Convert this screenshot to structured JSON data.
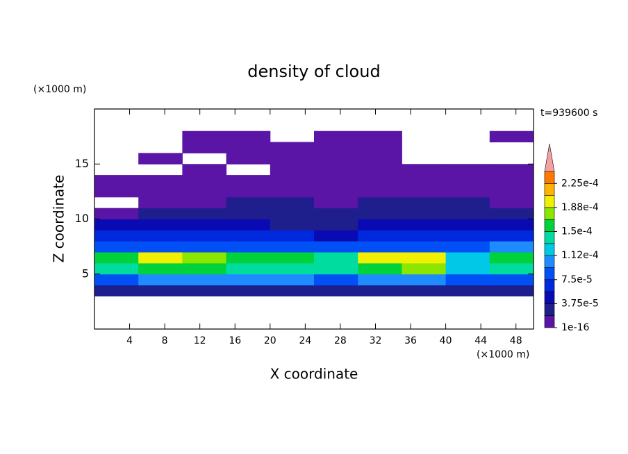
{
  "chart_data": {
    "type": "contourf",
    "title": "density of cloud",
    "x_label": "X coordinate",
    "y_label": "Z coordinate",
    "x_unit": "(×1000 m)",
    "y_unit": "(×1000 m)",
    "annotation": "t=939600 s",
    "xlim": [
      0,
      50
    ],
    "ylim": [
      0,
      20
    ],
    "xticks": [
      4,
      8,
      12,
      16,
      20,
      24,
      28,
      32,
      36,
      40,
      44,
      48
    ],
    "yticks": [
      5,
      10,
      15
    ],
    "x": [
      2.5,
      7.5,
      12.5,
      17.5,
      22.5,
      27.5,
      32.5,
      37.5,
      42.5,
      47.5
    ],
    "z": [
      3.5,
      4.5,
      5.5,
      6.5,
      7.5,
      8.5,
      9.5,
      10.5,
      11.5,
      12.5,
      13.5,
      14.5,
      15.5,
      16.5,
      17.5
    ],
    "values": [
      [
        3e-05,
        3e-05,
        3e-05,
        3e-05,
        3e-05,
        3e-05,
        3e-05,
        3e-05,
        3e-05,
        3e-05
      ],
      [
        9e-05,
        0.0001,
        0.0001,
        0.0001,
        9.5e-05,
        9e-05,
        0.0001,
        0.0001,
        8e-05,
        9e-05
      ],
      [
        0.00014,
        0.00016,
        0.00015,
        0.000145,
        0.00014,
        0.000135,
        0.00016,
        0.00017,
        0.00012,
        0.00014
      ],
      [
        0.00015,
        0.00019,
        0.00017,
        0.00016,
        0.00015,
        0.00014,
        0.00019,
        0.0002,
        0.00013,
        0.00016
      ],
      [
        9e-05,
        8e-05,
        8e-05,
        8e-05,
        8e-05,
        8e-05,
        8.5e-05,
        9e-05,
        8e-05,
        0.0001
      ],
      [
        6e-05,
        6e-05,
        6e-05,
        6e-05,
        6e-05,
        5e-05,
        6e-05,
        6.5e-05,
        6e-05,
        6e-05
      ],
      [
        4e-05,
        4e-05,
        4e-05,
        4e-05,
        3.5e-05,
        3e-05,
        4e-05,
        4.5e-05,
        4.5e-05,
        4e-05
      ],
      [
        1.5e-05,
        2.5e-05,
        2.5e-05,
        2.5e-05,
        2.5e-05,
        2e-05,
        2.5e-05,
        3e-05,
        3e-05,
        2.5e-05
      ],
      [
        null,
        1e-05,
        1e-05,
        2e-05,
        2e-05,
        1e-05,
        2e-05,
        2e-05,
        2e-05,
        1e-05
      ],
      [
        5e-06,
        5e-06,
        5e-06,
        5e-06,
        5e-06,
        5e-06,
        5e-06,
        5e-06,
        5e-06,
        5e-06
      ],
      [
        5e-06,
        5e-06,
        5e-06,
        5e-06,
        5e-06,
        5e-06,
        5e-06,
        5e-06,
        5e-06,
        5e-06
      ],
      [
        null,
        null,
        5e-06,
        null,
        5e-06,
        5e-06,
        5e-06,
        5e-06,
        5e-06,
        5e-06
      ],
      [
        null,
        5e-06,
        null,
        5e-06,
        5e-06,
        5e-06,
        5e-06,
        null,
        null,
        null
      ],
      [
        null,
        null,
        5e-06,
        5e-06,
        5e-06,
        5e-06,
        5e-06,
        null,
        null,
        null
      ],
      [
        null,
        null,
        5e-06,
        5e-06,
        null,
        5e-06,
        5e-06,
        null,
        null,
        5e-06
      ]
    ],
    "levels": [
      1e-16,
      1.875e-05,
      3.75e-05,
      5.625e-05,
      7.5e-05,
      9.375e-05,
      0.0001125,
      0.00013125,
      0.00015,
      0.00016875,
      0.0001875,
      0.00020625,
      0.000225,
      0.00024375
    ],
    "colors": [
      "#5a14a6",
      "#1e1e8c",
      "#0a0ab4",
      "#0028dc",
      "#0050f5",
      "#1e8cff",
      "#00c8e6",
      "#00dca0",
      "#00d23c",
      "#8ce600",
      "#f0f000",
      "#ffb400",
      "#ff7800",
      "#f02000"
    ],
    "extend_color": "#f4a0a0",
    "colorbar_ticks": [
      {
        "value": 1e-16,
        "label": "1e-16"
      },
      {
        "value": 3.75e-05,
        "label": "3.75e-5"
      },
      {
        "value": 7.5e-05,
        "label": "7.5e-5"
      },
      {
        "value": 0.0001125,
        "label": "1.12e-4"
      },
      {
        "value": 0.00015,
        "label": "1.5e-4"
      },
      {
        "value": 0.0001875,
        "label": "1.88e-4"
      },
      {
        "value": 0.000225,
        "label": "2.25e-4"
      }
    ]
  }
}
